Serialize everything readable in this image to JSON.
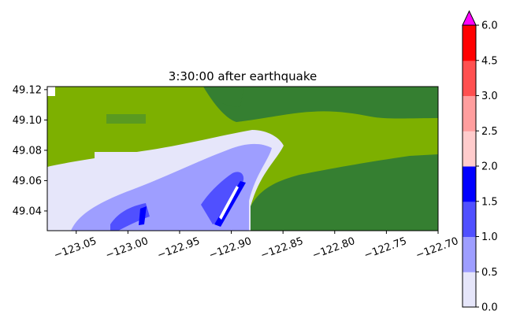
{
  "chart_data": {
    "type": "heatmap",
    "title": "3:30:00 after earthquake",
    "xlabel": "",
    "ylabel": "",
    "xlim": [
      -123.078,
      -122.7
    ],
    "ylim": [
      49.027,
      49.122
    ],
    "x_ticks": [
      -123.05,
      -123.0,
      -122.95,
      -122.9,
      -122.85,
      -122.8,
      -122.75,
      -122.7
    ],
    "x_tick_labels": [
      "−123.05",
      "−123.00",
      "−122.95",
      "−122.90",
      "−122.85",
      "−122.80",
      "−122.75",
      "−122.70"
    ],
    "y_ticks": [
      49.04,
      49.06,
      49.08,
      49.1,
      49.12
    ],
    "y_tick_labels": [
      "49.04",
      "49.06",
      "49.08",
      "49.10",
      "49.12"
    ],
    "colorbar": {
      "levels": [
        0.0,
        0.5,
        1.0,
        1.5,
        2.0,
        2.5,
        3.0,
        4.5,
        6.0
      ],
      "tick_labels": [
        "0.0",
        "0.5",
        "1.0",
        "1.5",
        "2.0",
        "2.5",
        "3.0",
        "4.5",
        "6.0"
      ],
      "colors": [
        "#e6e6fa",
        "#9e9eff",
        "#5050ff",
        "#0000ff",
        "#ffcccc",
        "#ff9e9e",
        "#ff5050",
        "#ff0000"
      ],
      "over_color": "#ff00ff",
      "extend": "max"
    },
    "land_colors": {
      "low": "#7db000",
      "high": "#357f31"
    },
    "grid": false
  }
}
